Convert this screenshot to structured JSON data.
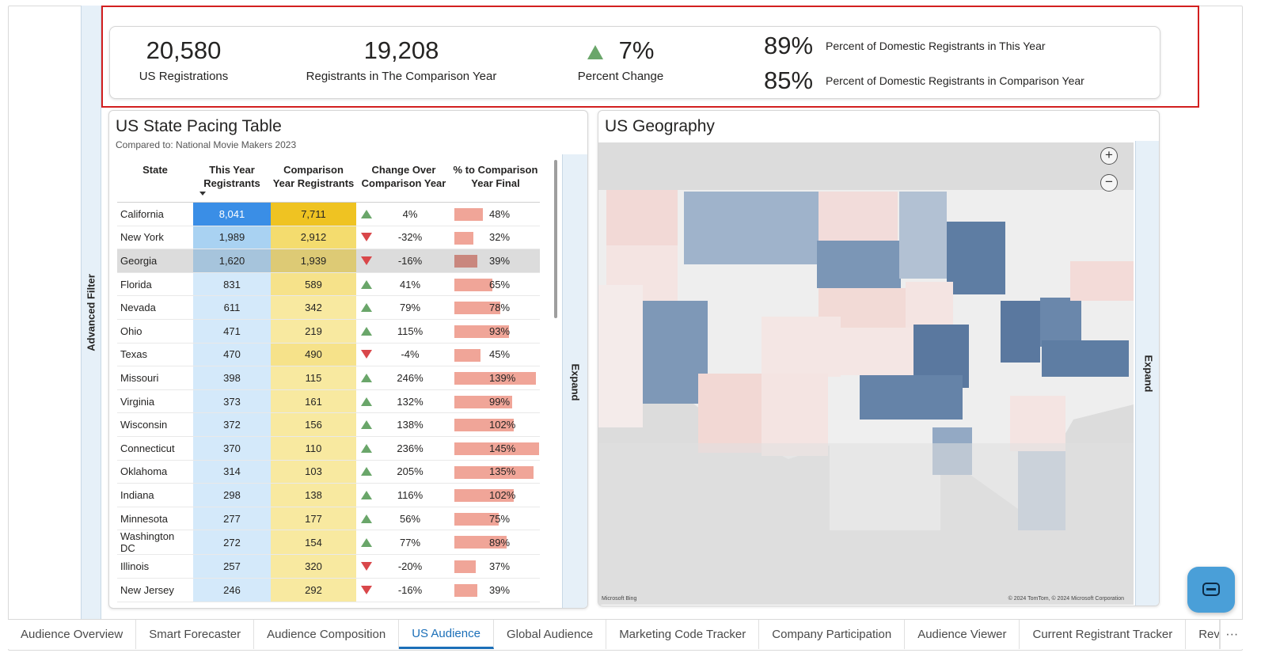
{
  "sidebar": {
    "advanced_filter_label": "Advanced Filter"
  },
  "kpis": {
    "us_registrations": {
      "value": "20,580",
      "label": "US Registrations"
    },
    "comparison_year": {
      "value": "19,208",
      "label": "Registrants in The Comparison Year"
    },
    "percent_change": {
      "value": "7%",
      "label": "Percent Change",
      "direction": "up"
    },
    "domestic_this_year": {
      "value": "89%",
      "label": "Percent of Domestic Registrants in This Year"
    },
    "domestic_comparison": {
      "value": "85%",
      "label": "Percent of Domestic Registrants in Comparison Year"
    }
  },
  "pacing_table": {
    "title": "US State Pacing Table",
    "subtitle": "Compared to: National Movie Makers 2023",
    "expand_label": "Expand",
    "headers": {
      "state": "State",
      "this_year": "This Year Registrants",
      "comparison_year": "Comparison Year Registrants",
      "change": "Change Over Comparison Year",
      "pct_final": "% to Comparison Year Final"
    },
    "rows": [
      {
        "state": "California",
        "this_year": "8,041",
        "comparison": "7,711",
        "dir": "up",
        "change": "4%",
        "pct": "48%",
        "pct_value": 48
      },
      {
        "state": "New York",
        "this_year": "1,989",
        "comparison": "2,912",
        "dir": "down",
        "change": "-32%",
        "pct": "32%",
        "pct_value": 32
      },
      {
        "state": "Georgia",
        "this_year": "1,620",
        "comparison": "1,939",
        "dir": "down",
        "change": "-16%",
        "pct": "39%",
        "pct_value": 39
      },
      {
        "state": "Florida",
        "this_year": "831",
        "comparison": "589",
        "dir": "up",
        "change": "41%",
        "pct": "65%",
        "pct_value": 65
      },
      {
        "state": "Nevada",
        "this_year": "611",
        "comparison": "342",
        "dir": "up",
        "change": "79%",
        "pct": "78%",
        "pct_value": 78
      },
      {
        "state": "Ohio",
        "this_year": "471",
        "comparison": "219",
        "dir": "up",
        "change": "115%",
        "pct": "93%",
        "pct_value": 93
      },
      {
        "state": "Texas",
        "this_year": "470",
        "comparison": "490",
        "dir": "down",
        "change": "-4%",
        "pct": "45%",
        "pct_value": 45
      },
      {
        "state": "Missouri",
        "this_year": "398",
        "comparison": "115",
        "dir": "up",
        "change": "246%",
        "pct": "139%",
        "pct_value": 139
      },
      {
        "state": "Virginia",
        "this_year": "373",
        "comparison": "161",
        "dir": "up",
        "change": "132%",
        "pct": "99%",
        "pct_value": 99
      },
      {
        "state": "Wisconsin",
        "this_year": "372",
        "comparison": "156",
        "dir": "up",
        "change": "138%",
        "pct": "102%",
        "pct_value": 102
      },
      {
        "state": "Connecticut",
        "this_year": "370",
        "comparison": "110",
        "dir": "up",
        "change": "236%",
        "pct": "145%",
        "pct_value": 145
      },
      {
        "state": "Oklahoma",
        "this_year": "314",
        "comparison": "103",
        "dir": "up",
        "change": "205%",
        "pct": "135%",
        "pct_value": 135
      },
      {
        "state": "Indiana",
        "this_year": "298",
        "comparison": "138",
        "dir": "up",
        "change": "116%",
        "pct": "102%",
        "pct_value": 102
      },
      {
        "state": "Minnesota",
        "this_year": "277",
        "comparison": "177",
        "dir": "up",
        "change": "56%",
        "pct": "75%",
        "pct_value": 75
      },
      {
        "state": "Washington DC",
        "this_year": "272",
        "comparison": "154",
        "dir": "up",
        "change": "77%",
        "pct": "89%",
        "pct_value": 89
      },
      {
        "state": "Illinois",
        "this_year": "257",
        "comparison": "320",
        "dir": "down",
        "change": "-20%",
        "pct": "37%",
        "pct_value": 37
      },
      {
        "state": "New Jersey",
        "this_year": "246",
        "comparison": "292",
        "dir": "down",
        "change": "-16%",
        "pct": "39%",
        "pct_value": 39
      }
    ]
  },
  "geography": {
    "title": "US Geography",
    "expand_label": "Expand",
    "zoom_in": "+",
    "zoom_out": "−",
    "attribution": "© 2024 TomTom, © 2024 Microsoft Corporation",
    "logo": "Microsoft Bing"
  },
  "tabs": [
    {
      "label": "Audience Overview",
      "active": false
    },
    {
      "label": "Smart Forecaster",
      "active": false
    },
    {
      "label": "Audience Composition",
      "active": false
    },
    {
      "label": "US Audience",
      "active": true
    },
    {
      "label": "Global Audience",
      "active": false
    },
    {
      "label": "Marketing Code Tracker",
      "active": false
    },
    {
      "label": "Company Participation",
      "active": false
    },
    {
      "label": "Audience Viewer",
      "active": false
    },
    {
      "label": "Current Registrant Tracker",
      "active": false
    },
    {
      "label": "Reven",
      "active": false
    }
  ],
  "tab_more": "···",
  "colors": {
    "accent": "#1b6fb8",
    "highlight_box": "#d21f1f",
    "up": "#6aa66a",
    "down": "#d9474a",
    "bar": "#f0a598"
  }
}
